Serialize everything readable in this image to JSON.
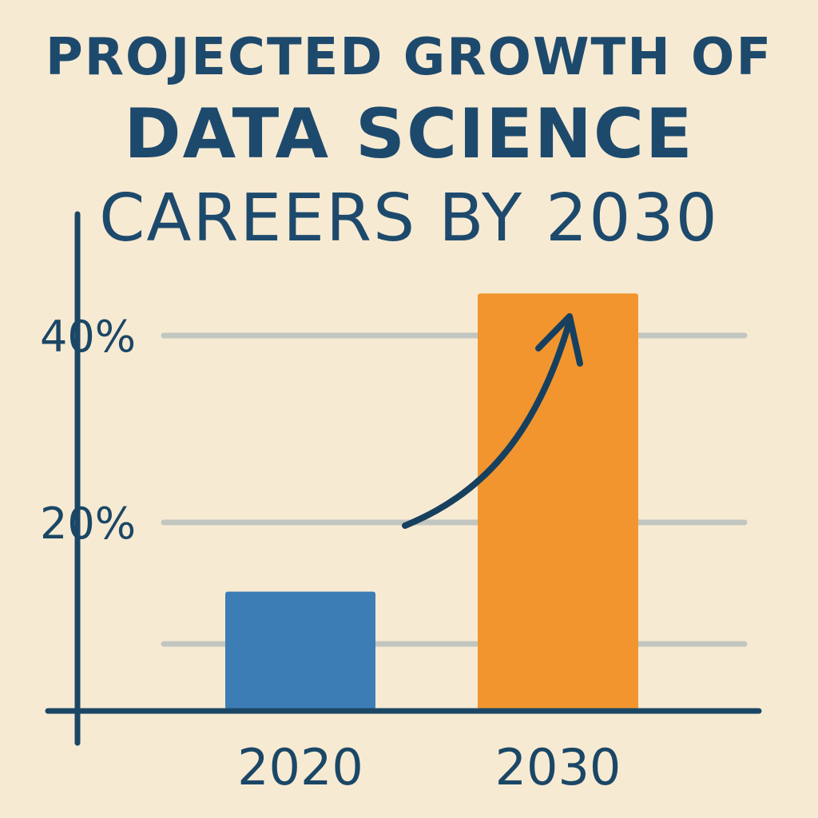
{
  "chart_data": {
    "type": "bar",
    "title": "PROJECTED GROWTH OF DATA SCIENCE CAREERS BY 2030",
    "title_lines": [
      "PROJECTED GROWTH OF",
      "DATA SCIENCE",
      "CAREERS BY 2030"
    ],
    "categories": [
      "2020",
      "2030"
    ],
    "values": [
      12.6,
      44.5
    ],
    "y_ticks": [
      {
        "value": 20,
        "label": "20%"
      },
      {
        "value": 40,
        "label": "40%"
      }
    ],
    "gridlines": [
      7,
      20,
      40
    ],
    "ylim": [
      0,
      60
    ],
    "grid": true,
    "bar_colors": [
      "#3d7db6",
      "#f2952f"
    ],
    "axis_color": "#1b4766",
    "grid_color": "#c2c6c0",
    "annotation": "upward-trend-arrow"
  }
}
